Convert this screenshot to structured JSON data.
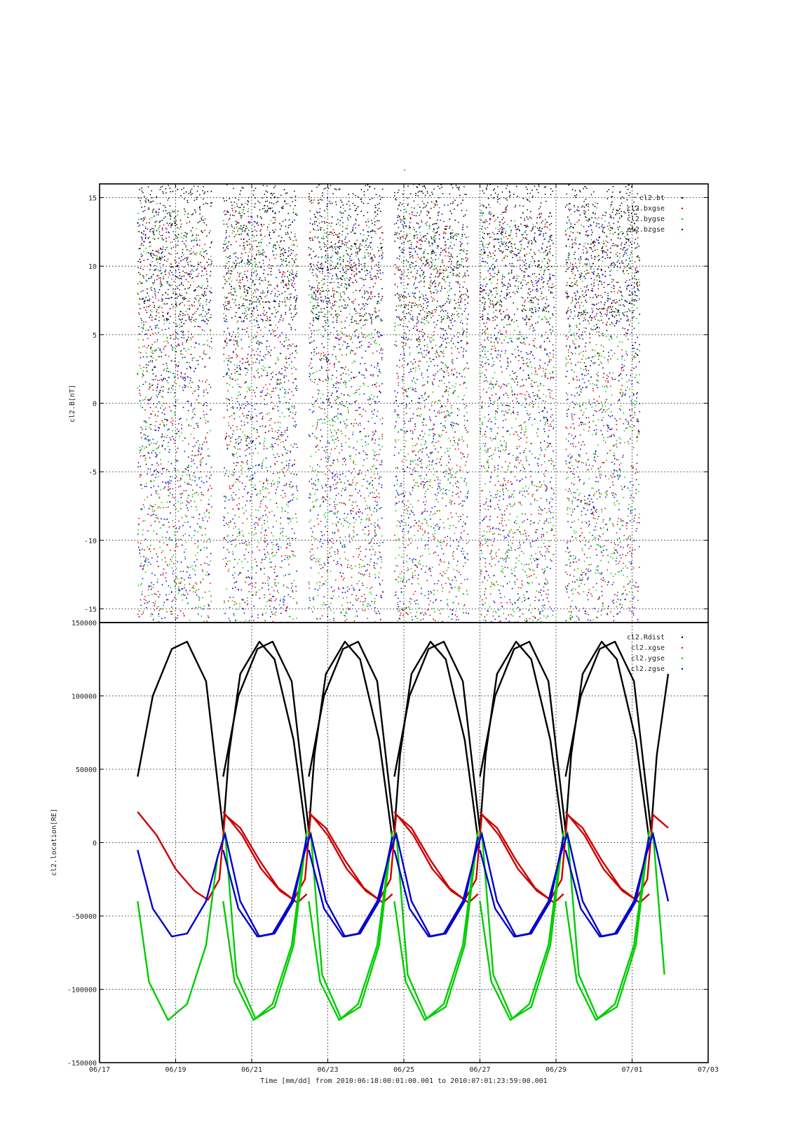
{
  "figure": {
    "top_mark": "-",
    "xlabel": "Time [mm/dd]  from 2010:06:18:00:01:00.001  to  2010:07:01:23:59:00.001",
    "xticks": [
      "06/17",
      "06/19",
      "06/21",
      "06/23",
      "06/25",
      "06/27",
      "06/29",
      "07/01",
      "07/03"
    ]
  },
  "chart_data": [
    {
      "type": "scatter",
      "title": "",
      "ylabel": "cl2.B[nT]",
      "xlim": [
        0,
        16
      ],
      "ylim": [
        -16,
        16
      ],
      "yticks": [
        -15,
        -10,
        -5,
        0,
        5,
        10,
        15
      ],
      "ytick_labels": [
        "-15",
        "-10",
        "-5",
        "0",
        "5",
        "10",
        "15"
      ],
      "grid": true,
      "legend_position": "top-right",
      "note_x": "x in days since 06/17 00:00",
      "series": [
        {
          "name": "cl2.bt",
          "color": "#000000"
        },
        {
          "name": "cl2.bxgse",
          "color": "#dd0000"
        },
        {
          "name": "cl2.bygse",
          "color": "#00cc00"
        },
        {
          "name": "cl2.bzgse",
          "color": "#0000dd"
        }
      ]
    },
    {
      "type": "line",
      "title": "",
      "ylabel": "cl2.location[RE]",
      "xlim": [
        0,
        16
      ],
      "ylim": [
        -150000,
        150000
      ],
      "yticks": [
        -150000,
        -100000,
        -50000,
        0,
        50000,
        100000,
        150000
      ],
      "ytick_labels": [
        "-150000",
        "-100000",
        "-50000",
        "0",
        "50000",
        "100000",
        "150000"
      ],
      "grid": true,
      "legend_position": "top-right",
      "orbit_start_days": [
        1.0,
        3.25,
        5.5,
        7.75,
        10.0,
        12.25
      ],
      "orbit_period_days": 2.27,
      "data_end_day": 14.99,
      "series": [
        {
          "name": "cl2.Rdist",
          "color": "#000000",
          "x": [
            1.0,
            1.4,
            1.9,
            2.3,
            2.8,
            3.25,
            3.4,
            3.7,
            4.2,
            4.6,
            5.1,
            5.45
          ],
          "y": [
            45000,
            100000,
            132000,
            137000,
            110000,
            8000,
            60000,
            115000,
            137000,
            125000,
            70000,
            2000
          ]
        },
        {
          "name": "cl2.xgse",
          "color": "#cc0000",
          "x": [
            1.0,
            1.5,
            2.0,
            2.5,
            2.85,
            3.15,
            3.3,
            3.7,
            4.2,
            4.7,
            5.2,
            5.45
          ],
          "y": [
            21000,
            5000,
            -18000,
            -33000,
            -39000,
            -25000,
            19000,
            10000,
            -12000,
            -31000,
            -41000,
            -35000
          ]
        },
        {
          "name": "cl2.ygse",
          "color": "#00cc00",
          "x": [
            1.0,
            1.3,
            1.8,
            2.3,
            2.8,
            3.1,
            3.3,
            3.6,
            4.1,
            4.6,
            5.1,
            5.45
          ],
          "y": [
            -40000,
            -95000,
            -121000,
            -110000,
            -70000,
            -10000,
            7000,
            -90000,
            -120000,
            -112000,
            -70000,
            8000
          ]
        },
        {
          "name": "cl2.zgse",
          "color": "#0000cc",
          "x": [
            1.0,
            1.4,
            1.9,
            2.3,
            2.8,
            3.1,
            3.3,
            3.7,
            4.2,
            4.6,
            5.1,
            5.45
          ],
          "y": [
            -5000,
            -45000,
            -64000,
            -62000,
            -40000,
            -10000,
            6000,
            -40000,
            -64000,
            -62000,
            -40000,
            4000
          ]
        }
      ]
    }
  ]
}
